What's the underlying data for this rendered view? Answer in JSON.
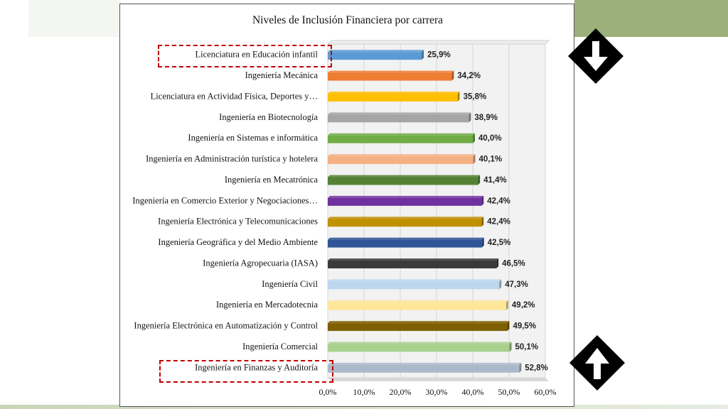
{
  "chart_data": {
    "type": "bar",
    "orientation": "horizontal",
    "title": "Niveles de Inclusión Financiera por carrera",
    "xlabel": "",
    "ylabel": "",
    "xlim": [
      0,
      60
    ],
    "x_ticks": [
      "0,0%",
      "10,0%",
      "20,0%",
      "30,0%",
      "40,0%",
      "50,0%",
      "60,0%"
    ],
    "grid": "vertical",
    "legend": "none",
    "categories": [
      "Licenciatura en Educación infantil",
      "Ingeniería Mecánica",
      "Licenciatura en Actividad Física, Deportes y…",
      "Ingeniería en Biotecnología",
      "Ingeniería en Sistemas e informática",
      "Ingeniería en Administración turística y hotelera",
      "Ingeniería en Mecatrónica",
      "Ingeniería en Comercio Exterior y Negociaciones…",
      "Ingeniería Electrónica y Telecomunicaciones",
      "Ingeniería Geográfica y del Medio Ambiente",
      "Ingeniería Agropecuaria (IASA)",
      "Ingeniería Civil",
      "Ingeniería en Mercadotecnia",
      "Ingeniería Electrónica en Automatización y Control",
      "Ingeniería Comercial",
      "Ingeniería en Finanzas y Auditoría"
    ],
    "values": [
      25.9,
      34.2,
      35.8,
      38.9,
      40.0,
      40.1,
      41.4,
      42.4,
      42.4,
      42.5,
      46.5,
      47.3,
      49.2,
      49.5,
      50.1,
      52.8
    ],
    "data_labels": [
      "25,9%",
      "34,2%",
      "35,8%",
      "38,9%",
      "40,0%",
      "40,1%",
      "41,4%",
      "42,4%",
      "42,4%",
      "42,5%",
      "46,5%",
      "47,3%",
      "49,2%",
      "49,5%",
      "50,1%",
      "52,8%"
    ],
    "colors": [
      "#5b9bd5",
      "#ed7d31",
      "#ffc000",
      "#a5a5a5",
      "#70ad47",
      "#f4b183",
      "#548235",
      "#7030a0",
      "#bf9000",
      "#2f5597",
      "#3a3a3a",
      "#bdd7ee",
      "#ffe699",
      "#7f6000",
      "#a9d18e",
      "#acb9ca"
    ]
  },
  "annotations": {
    "highlight_color": "#c00000",
    "arrow_down_icon": "arrow-down-diamond",
    "arrow_up_icon": "arrow-up-diamond"
  }
}
